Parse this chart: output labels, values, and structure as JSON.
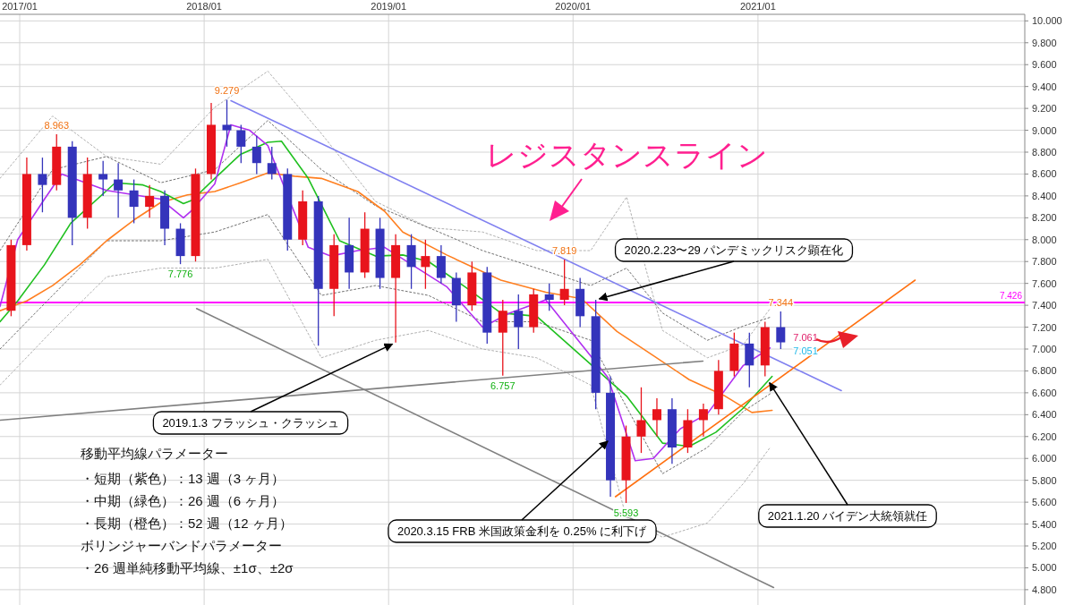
{
  "chart_data": {
    "type": "candlestick",
    "grid": true,
    "xlim": [
      "2016-11-23",
      "2022-06-13"
    ],
    "ylim": [
      4.66,
      10.06
    ],
    "xticks": [
      {
        "value": "2017-01-01",
        "label": "2017/01"
      },
      {
        "value": "2018-01-01",
        "label": "2018/01"
      },
      {
        "value": "2019-01-01",
        "label": "2019/01"
      },
      {
        "value": "2020-01-01",
        "label": "2020/01"
      },
      {
        "value": "2021-01-01",
        "label": "2021/01"
      }
    ],
    "yticks": [
      {
        "value": 4.8,
        "label": "4.800"
      },
      {
        "value": 5.0,
        "label": "5.000"
      },
      {
        "value": 5.2,
        "label": "5.200"
      },
      {
        "value": 5.4,
        "label": "5.400"
      },
      {
        "value": 5.6,
        "label": "5.600"
      },
      {
        "value": 5.8,
        "label": "5.800"
      },
      {
        "value": 6.0,
        "label": "6.000"
      },
      {
        "value": 6.2,
        "label": "6.200"
      },
      {
        "value": 6.4,
        "label": "6.400"
      },
      {
        "value": 6.6,
        "label": "6.600"
      },
      {
        "value": 6.8,
        "label": "6.800"
      },
      {
        "value": 7.0,
        "label": "7.000"
      },
      {
        "value": 7.2,
        "label": "7.200"
      },
      {
        "value": 7.4,
        "label": "7.400"
      },
      {
        "value": 7.6,
        "label": "7.600"
      },
      {
        "value": 7.8,
        "label": "7.800"
      },
      {
        "value": 8.0,
        "label": "8.000"
      },
      {
        "value": 8.2,
        "label": "8.200"
      },
      {
        "value": 8.4,
        "label": "8.400"
      },
      {
        "value": 8.6,
        "label": "8.600"
      },
      {
        "value": 8.8,
        "label": "8.800"
      },
      {
        "value": 9.0,
        "label": "9.000"
      },
      {
        "value": 9.2,
        "label": "9.200"
      },
      {
        "value": 9.4,
        "label": "9.400"
      },
      {
        "value": 9.6,
        "label": "9.600"
      },
      {
        "value": 9.8,
        "label": "9.800"
      },
      {
        "value": 10.0,
        "label": "10.000"
      }
    ],
    "series": [
      {
        "type": "line",
        "color": "#b0b0b0",
        "line_style": "dotted",
        "x": [
          "2016-11-23",
          "2017-03-07",
          "2017-06-22",
          "2017-10-07",
          "2018-01-22",
          "2018-05-07",
          "2018-08-21",
          "2018-12-06",
          "2019-03-21",
          "2019-07-06",
          "2019-10-21",
          "2020-02-05",
          "2020-04-16",
          "2020-06-26",
          "2020-09-23",
          "2020-12-03",
          "2021-01-25"
        ],
        "values": [
          8.56,
          9.13,
          8.76,
          8.69,
          9.21,
          9.54,
          8.97,
          8.35,
          8.11,
          8.07,
          7.9,
          7.9,
          8.39,
          7.17,
          6.92,
          7.04,
          7.37
        ]
      },
      {
        "type": "line",
        "color": "#b0b0b0",
        "line_style": "dotted",
        "x": [
          "2016-11-23",
          "2017-03-07",
          "2017-06-22",
          "2017-10-07",
          "2018-01-22",
          "2018-05-07",
          "2018-08-21",
          "2018-12-06",
          "2019-03-21",
          "2019-07-06",
          "2019-10-21",
          "2020-02-05",
          "2020-04-16",
          "2020-06-26",
          "2020-09-23",
          "2020-12-03",
          "2021-01-25"
        ],
        "values": [
          6.67,
          7.17,
          7.66,
          7.74,
          7.74,
          7.82,
          6.92,
          7.08,
          7.17,
          7.0,
          6.92,
          6.67,
          5.45,
          5.28,
          5.41,
          5.77,
          6.1
        ]
      },
      {
        "type": "line",
        "color": "#707070",
        "line_style": "dotted",
        "x": [
          "2016-11-23",
          "2017-03-07",
          "2017-06-22",
          "2017-10-07",
          "2018-01-22",
          "2018-05-07",
          "2018-08-21",
          "2018-12-06",
          "2019-03-21",
          "2019-07-06",
          "2019-10-21",
          "2020-02-05",
          "2020-04-16",
          "2020-06-26",
          "2020-09-23",
          "2020-12-03",
          "2021-01-25"
        ],
        "values": [
          7.9,
          8.64,
          8.76,
          8.52,
          8.64,
          9.09,
          8.64,
          8.31,
          8.11,
          7.9,
          7.74,
          7.58,
          7.74,
          7.33,
          7.08,
          7.21,
          7.29
        ]
      },
      {
        "type": "line",
        "color": "#707070",
        "line_style": "dotted",
        "x": [
          "2016-11-23",
          "2017-03-07",
          "2017-06-22",
          "2017-10-07",
          "2018-01-22",
          "2018-05-07",
          "2018-08-21",
          "2018-12-06",
          "2019-03-21",
          "2019-07-06",
          "2019-10-21",
          "2020-02-05",
          "2020-06-26",
          "2020-09-23",
          "2020-12-03",
          "2021-01-25"
        ],
        "values": [
          7.0,
          7.49,
          7.99,
          7.99,
          8.07,
          8.23,
          7.49,
          7.58,
          7.49,
          7.25,
          7.25,
          7.08,
          5.86,
          6.1,
          6.43,
          6.59
        ]
      },
      {
        "type": "line",
        "color": "#ff7f20",
        "x": [
          "2016-11-23",
          "2017-01-15",
          "2017-03-07",
          "2017-04-30",
          "2017-06-22",
          "2017-08-15",
          "2017-10-07",
          "2017-11-29",
          "2018-01-22",
          "2018-03-14",
          "2018-05-07",
          "2018-06-29",
          "2018-08-21",
          "2018-11-01",
          "2018-12-24",
          "2019-01-29",
          "2019-04-26",
          "2019-08-11",
          "2019-11-08",
          "2020-01-18",
          "2020-03-28",
          "2020-06-08",
          "2020-08-18",
          "2020-10-28",
          "2020-12-20",
          "2021-01-29"
        ],
        "values": [
          7.35,
          7.44,
          7.58,
          7.77,
          7.99,
          8.18,
          8.34,
          8.41,
          8.44,
          8.52,
          8.61,
          8.58,
          8.56,
          8.44,
          8.26,
          8.07,
          7.86,
          7.63,
          7.52,
          7.46,
          7.16,
          6.94,
          6.72,
          6.57,
          6.42,
          6.44
        ]
      },
      {
        "type": "line",
        "color": "#20c020",
        "x": [
          "2016-11-23",
          "2016-12-28",
          "2017-02-19",
          "2017-04-12",
          "2017-07-09",
          "2017-09-02",
          "2017-10-07",
          "2017-11-21",
          "2017-12-08",
          "2018-01-22",
          "2018-03-14",
          "2018-05-07",
          "2018-06-03",
          "2018-07-26",
          "2018-09-26",
          "2018-12-06",
          "2019-01-29",
          "2019-03-21",
          "2019-06-01",
          "2019-08-11",
          "2019-10-21",
          "2020-04-16",
          "2020-06-26",
          "2020-08-18",
          "2020-10-10",
          "2020-12-03",
          "2021-01-29"
        ],
        "values": [
          7.25,
          7.44,
          7.77,
          8.15,
          8.52,
          8.5,
          8.44,
          8.33,
          8.36,
          8.56,
          8.78,
          8.89,
          8.9,
          8.56,
          7.99,
          7.85,
          7.86,
          7.8,
          7.57,
          7.33,
          7.3,
          6.57,
          6.14,
          6.11,
          6.24,
          6.46,
          6.75
        ]
      },
      {
        "type": "line",
        "color": "#b030f0",
        "x": [
          "2016-11-23",
          "2016-12-28",
          "2017-02-19",
          "2017-03-25",
          "2017-06-22",
          "2017-10-07",
          "2017-11-21",
          "2017-12-08",
          "2018-01-22",
          "2018-02-23",
          "2018-04-01",
          "2018-05-07",
          "2018-07-26",
          "2018-09-08",
          "2018-11-01",
          "2018-12-24",
          "2019-04-26",
          "2019-07-06",
          "2019-08-29",
          "2019-11-08",
          "2020-03-10",
          "2020-05-03",
          "2020-06-08",
          "2020-07-31",
          "2020-09-23",
          "2020-12-03",
          "2021-01-25"
        ],
        "values": [
          7.39,
          8.0,
          8.37,
          8.6,
          8.45,
          8.37,
          8.2,
          8.27,
          8.51,
          9.05,
          9.0,
          8.86,
          7.93,
          7.85,
          7.9,
          7.93,
          7.57,
          7.2,
          7.33,
          7.45,
          6.74,
          5.98,
          6.0,
          6.27,
          6.41,
          6.85,
          7.01
        ]
      },
      {
        "type": "line",
        "color": "#8080f0",
        "x": [
          "2018-02-23",
          "2021-06-15"
        ],
        "values": [
          9.27,
          6.62
        ]
      },
      {
        "type": "line",
        "color": "#ff7010",
        "x": [
          "2020-03-25",
          "2021-11-08"
        ],
        "values": [
          5.65,
          7.63
        ]
      },
      {
        "type": "line",
        "color": "#808080",
        "x": [
          "2016-11-23",
          "2020-09-14"
        ],
        "values": [
          6.35,
          6.89
        ]
      },
      {
        "type": "line",
        "color": "#808080",
        "x": [
          "2017-12-17",
          "2021-02-01"
        ],
        "values": [
          7.37,
          4.82
        ]
      },
      {
        "x": [
          "2016-12-15",
          "2017-01-15",
          "2017-02-15",
          "2017-03-15",
          "2017-04-15",
          "2017-05-15",
          "2017-06-15",
          "2017-07-15",
          "2017-08-15",
          "2017-09-15",
          "2017-10-15",
          "2017-11-15",
          "2017-12-15",
          "2018-01-15",
          "2018-02-15",
          "2018-03-15",
          "2018-04-15",
          "2018-05-15",
          "2018-06-15",
          "2018-07-15",
          "2018-08-15",
          "2018-09-15",
          "2018-10-15",
          "2018-11-15",
          "2018-12-15",
          "2019-01-15",
          "2019-02-15",
          "2019-03-15",
          "2019-04-15",
          "2019-05-15",
          "2019-06-15",
          "2019-07-15",
          "2019-08-15",
          "2019-09-15",
          "2019-10-15",
          "2019-11-15",
          "2019-12-15",
          "2020-01-15",
          "2020-02-15",
          "2020-03-15",
          "2020-04-15",
          "2020-05-15",
          "2020-06-15",
          "2020-07-15",
          "2020-08-15",
          "2020-09-15",
          "2020-10-15",
          "2020-11-15",
          "2020-12-15",
          "2021-01-15",
          "2021-02-15"
        ],
        "ohlc": [
          [
            7.35,
            8.0,
            7.3,
            7.95
          ],
          [
            7.95,
            8.75,
            7.9,
            8.6
          ],
          [
            8.6,
            8.75,
            8.25,
            8.5
          ],
          [
            8.5,
            8.963,
            8.45,
            8.85
          ],
          [
            8.85,
            8.9,
            7.95,
            8.2
          ],
          [
            8.2,
            8.75,
            8.1,
            8.6
          ],
          [
            8.6,
            8.72,
            8.4,
            8.55
          ],
          [
            8.55,
            8.7,
            8.2,
            8.45
          ],
          [
            8.45,
            8.55,
            8.15,
            8.3
          ],
          [
            8.3,
            8.5,
            8.2,
            8.4
          ],
          [
            8.4,
            8.45,
            7.95,
            8.1
          ],
          [
            8.1,
            8.15,
            7.776,
            7.85
          ],
          [
            7.85,
            8.65,
            7.8,
            8.6
          ],
          [
            8.6,
            9.25,
            8.55,
            9.05
          ],
          [
            9.05,
            9.279,
            8.85,
            9.0
          ],
          [
            9.0,
            9.05,
            8.7,
            8.85
          ],
          [
            8.85,
            8.95,
            8.6,
            8.7
          ],
          [
            8.7,
            8.85,
            8.55,
            8.6
          ],
          [
            8.6,
            8.65,
            7.9,
            8.0
          ],
          [
            8.0,
            8.45,
            7.95,
            8.35
          ],
          [
            8.35,
            8.4,
            7.03,
            7.55
          ],
          [
            7.55,
            8.05,
            7.3,
            7.95
          ],
          [
            7.95,
            8.2,
            7.55,
            7.7
          ],
          [
            7.7,
            8.25,
            7.65,
            8.1
          ],
          [
            8.1,
            8.2,
            7.55,
            7.65
          ],
          [
            7.65,
            8.05,
            7.06,
            7.95
          ],
          [
            7.95,
            8.05,
            7.55,
            7.75
          ],
          [
            7.75,
            8.0,
            7.55,
            7.85
          ],
          [
            7.85,
            7.95,
            7.6,
            7.65
          ],
          [
            7.65,
            7.7,
            7.25,
            7.4
          ],
          [
            7.4,
            7.8,
            7.35,
            7.7
          ],
          [
            7.7,
            7.75,
            7.05,
            7.15
          ],
          [
            7.15,
            7.45,
            6.757,
            7.35
          ],
          [
            7.35,
            7.5,
            7.0,
            7.2
          ],
          [
            7.2,
            7.55,
            7.15,
            7.5
          ],
          [
            7.5,
            7.6,
            7.35,
            7.45
          ],
          [
            7.45,
            7.819,
            7.4,
            7.55
          ],
          [
            7.55,
            7.65,
            7.2,
            7.3
          ],
          [
            7.3,
            7.45,
            6.45,
            6.6
          ],
          [
            6.6,
            6.75,
            5.65,
            5.8
          ],
          [
            5.8,
            6.3,
            5.593,
            6.2
          ],
          [
            6.2,
            6.65,
            6.05,
            6.35
          ],
          [
            6.35,
            6.55,
            6.2,
            6.45
          ],
          [
            6.45,
            6.55,
            5.95,
            6.1
          ],
          [
            6.1,
            6.45,
            6.05,
            6.35
          ],
          [
            6.35,
            6.5,
            6.2,
            6.45
          ],
          [
            6.45,
            6.9,
            6.4,
            6.8
          ],
          [
            6.8,
            7.15,
            6.75,
            7.05
          ],
          [
            7.05,
            7.15,
            6.65,
            6.85
          ],
          [
            6.85,
            7.25,
            6.75,
            7.2
          ],
          [
            7.2,
            7.344,
            7.0,
            7.061
          ]
        ],
        "colors": [
          "#e8141c",
          "#e8141c",
          "#3434bb",
          "#e8141c",
          "#3434bb",
          "#e8141c",
          "#3434bb",
          "#3434bb",
          "#3434bb",
          "#e8141c",
          "#3434bb",
          "#3434bb",
          "#e8141c",
          "#e8141c",
          "#3434bb",
          "#3434bb",
          "#3434bb",
          "#3434bb",
          "#3434bb",
          "#e8141c",
          "#3434bb",
          "#e8141c",
          "#3434bb",
          "#e8141c",
          "#3434bb",
          "#e8141c",
          "#3434bb",
          "#e8141c",
          "#3434bb",
          "#3434bb",
          "#e8141c",
          "#3434bb",
          "#e8141c",
          "#3434bb",
          "#e8141c",
          "#3434bb",
          "#e8141c",
          "#3434bb",
          "#3434bb",
          "#3434bb",
          "#e8141c",
          "#e8141c",
          "#e8141c",
          "#3434bb",
          "#e8141c",
          "#e8141c",
          "#e8141c",
          "#e8141c",
          "#3434bb",
          "#e8141c",
          "#3434bb"
        ]
      }
    ],
    "ref_lines": [
      {
        "axis": "y",
        "value": 7.426,
        "label": "7.426",
        "color": "#ff00ff"
      }
    ],
    "annotations": [
      {
        "text": "8.963",
        "x": "2017-03-15",
        "y": 8.963
      },
      {
        "text": "9.279",
        "x": "2018-02-15",
        "y": 9.279
      },
      {
        "text": "7.776",
        "x": "2017-11-15",
        "y": 7.776
      },
      {
        "text": "6.757",
        "x": "2019-08-15",
        "y": 6.757
      },
      {
        "text": "7.819",
        "x": "2019-12-15",
        "y": 7.819
      },
      {
        "text": "5.593",
        "x": "2020-04-15",
        "y": 5.593
      },
      {
        "text": "7.344",
        "x": "2021-02-15",
        "y": 7.344
      },
      {
        "text": "7.061",
        "x": "2021-02-15",
        "y": 7.061
      },
      {
        "text": "7.051",
        "x": "2021-02-15",
        "y": 7.051
      },
      {
        "text": "2019.1.3 フラッシュ・クラッシュ",
        "x": "2019-01-15",
        "y": 7.06
      },
      {
        "text": "2020.2.23〜29 パンデミックリスク顕在化",
        "x": "2020-02-15",
        "y": 7.45
      },
      {
        "text": "2020.3.15 FRB 米国政策金利を 0.25% に利下げ",
        "x": "2020-03-15",
        "y": 6.18
      },
      {
        "text": "2021.1.20 バイデン大統領就任",
        "x": "2021-01-20",
        "y": 6.72
      },
      "レジスタンスライン",
      "移動平均線パラメーター",
      "・短期（紫色）：13 週（3 ヶ月）",
      "・中期（緑色）：26 週（6 ヶ月）",
      "・長期（橙色）：52 週（12 ヶ月）",
      "ボリンジャーバンドパラメーター",
      "・26 週単純移動平均線、±1σ、±2σ"
    ]
  }
}
